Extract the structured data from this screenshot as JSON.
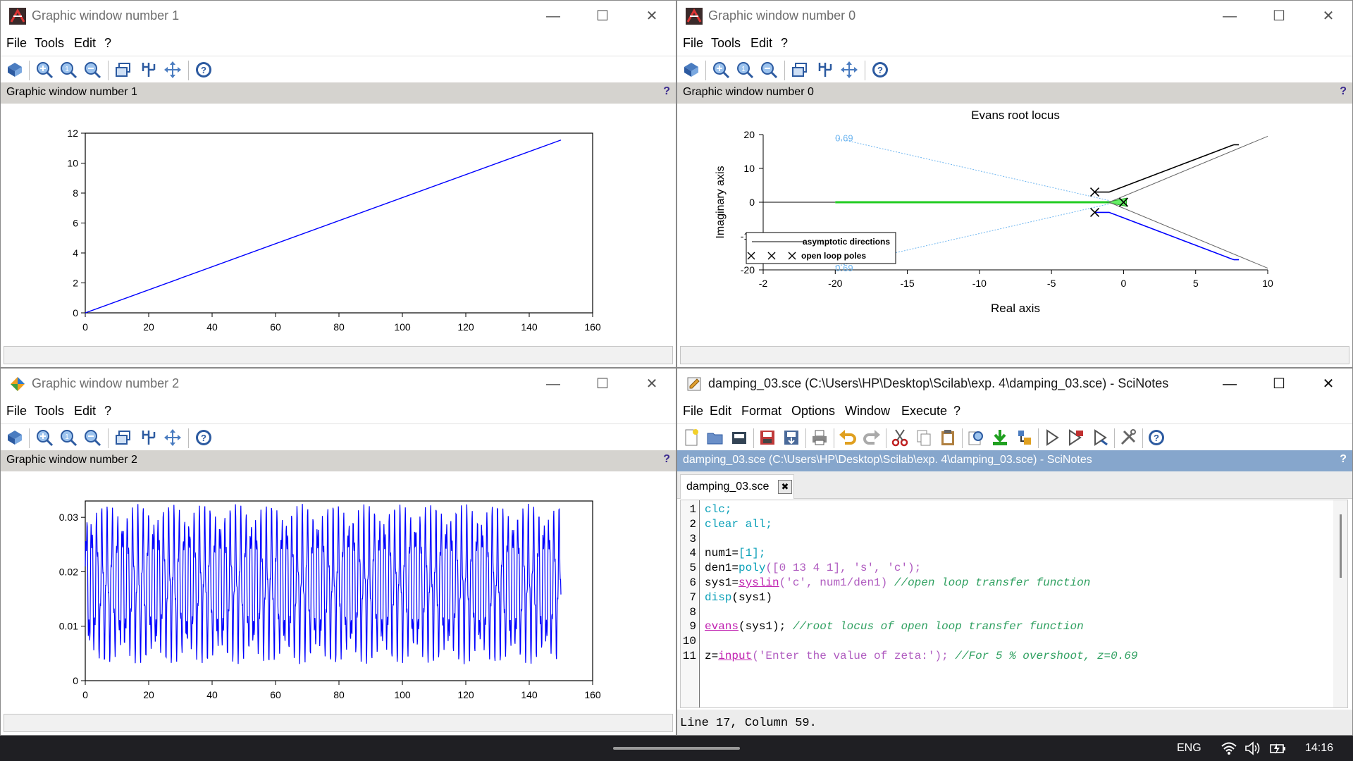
{
  "graphic_menu": {
    "file": "File",
    "tools": "Tools",
    "edit": "Edit",
    "help": "?"
  },
  "window1": {
    "title": "Graphic window number 1",
    "info_label": "Graphic window number 1",
    "help_mark": "?",
    "chart_data": {
      "type": "line",
      "x": [
        0,
        150
      ],
      "series": [
        {
          "values": [
            0,
            11.54
          ],
          "color": "#0000ff"
        }
      ],
      "xlim": [
        0,
        160
      ],
      "ylim": [
        0,
        12
      ],
      "xticks": [
        "0",
        "20",
        "40",
        "60",
        "80",
        "100",
        "120",
        "140",
        "160"
      ],
      "yticks": [
        "0",
        "2",
        "4",
        "6",
        "8",
        "10",
        "12"
      ],
      "grid": false
    }
  },
  "window0": {
    "title": "Graphic window number 0",
    "info_label": "Graphic window number 0",
    "help_mark": "?",
    "chart_data": {
      "type": "line",
      "title": "Evans root locus",
      "xlabel": "Real axis",
      "ylabel": "Imaginary axis",
      "xlim": [
        -25,
        10
      ],
      "ylim": [
        -20,
        20
      ],
      "xticks": [
        "-2",
        "-20",
        "-15",
        "-10",
        "-5",
        "0",
        "5",
        "10"
      ],
      "yticks": [
        "-20",
        "-10",
        "0",
        "10",
        "20"
      ],
      "damping_labels": [
        "0.69",
        "0.69"
      ],
      "open_loop_poles": [
        [
          -2,
          3
        ],
        [
          -2,
          -3
        ],
        [
          0,
          0
        ]
      ],
      "series": [
        {
          "name": "asymptotic directions",
          "color": "#000000"
        },
        {
          "name": "open loop poles",
          "color": "#000000"
        },
        {
          "name": "",
          "color": "#0000ff"
        },
        {
          "name": "",
          "color": "#00cc00"
        }
      ],
      "legend_position": "bottom-left",
      "grid": false
    }
  },
  "window2": {
    "title": "Graphic window number 2",
    "info_label": "Graphic window number 2",
    "help_mark": "?",
    "chart_data": {
      "type": "line",
      "x_range": [
        0,
        150
      ],
      "series": [
        {
          "color": "#0000ff",
          "min": 0.003,
          "max": 0.0325
        }
      ],
      "xlim": [
        0,
        160
      ],
      "ylim": [
        0,
        0.033
      ],
      "xticks": [
        "0",
        "20",
        "40",
        "60",
        "80",
        "100",
        "120",
        "140",
        "160"
      ],
      "yticks": [
        "0",
        "0.01",
        "0.02",
        "0.03"
      ],
      "grid": false
    }
  },
  "scinotes": {
    "title": "damping_03.sce (C:\\Users\\HP\\Desktop\\Scilab\\exp. 4\\damping_03.sce) - SciNotes",
    "menu": [
      "File",
      "Edit",
      "Format",
      "Options",
      "Window",
      "Execute",
      "?"
    ],
    "info_label": "damping_03.sce (C:\\Users\\HP\\Desktop\\Scilab\\exp. 4\\damping_03.sce) - SciNotes",
    "help_mark": "?",
    "tab_label": "damping_03.sce",
    "code_lines": [
      {
        "n": "1",
        "parts": [
          [
            "clc;",
            "#0aa0b8"
          ]
        ]
      },
      {
        "n": "2",
        "parts": [
          [
            "clear all;",
            "#0aa0b8"
          ]
        ]
      },
      {
        "n": "3",
        "parts": []
      },
      {
        "n": "4",
        "parts": [
          [
            "num1=",
            "#000"
          ],
          [
            "[1];",
            "#0aa0b8"
          ]
        ]
      },
      {
        "n": "5",
        "parts": [
          [
            "den1=",
            "#000"
          ],
          [
            "poly",
            "#0aa0b8"
          ],
          [
            "([0 13 4 1], 's', 'c');",
            "#b05cc0"
          ]
        ]
      },
      {
        "n": "6",
        "parts": [
          [
            "sys1=",
            "#000"
          ],
          [
            "syslin",
            "#c020b0"
          ],
          [
            "('c', num1/den1) ",
            "#b05cc0"
          ],
          [
            "//open loop transfer function",
            "#2fa060"
          ]
        ]
      },
      {
        "n": "7",
        "parts": [
          [
            "disp",
            "#0aa0b8"
          ],
          [
            "(sys1)",
            "#000"
          ]
        ]
      },
      {
        "n": "8",
        "parts": []
      },
      {
        "n": "9",
        "parts": [
          [
            "evans",
            "#c020b0"
          ],
          [
            "(sys1); ",
            "#000"
          ],
          [
            "//root locus of open loop transfer function",
            "#2fa060"
          ]
        ]
      },
      {
        "n": "10",
        "parts": []
      },
      {
        "n": "11",
        "parts": [
          [
            "z=",
            "#000"
          ],
          [
            "input",
            "#c020b0"
          ],
          [
            "('Enter the value of zeta:'); ",
            "#b05cc0"
          ],
          [
            "//For 5 % overshoot, z=0.69",
            "#2fa060"
          ]
        ]
      }
    ],
    "status": "Line 17, Column 59."
  },
  "taskbar": {
    "lang": "ENG",
    "time": "14:16"
  }
}
